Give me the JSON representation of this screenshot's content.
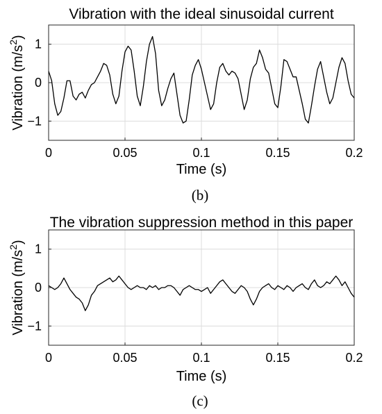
{
  "chart_data": [
    {
      "type": "line",
      "panel_label": "(b)",
      "title": "Vibration with the ideal sinusoidal current",
      "xlabel": "Time (s)",
      "ylabel_main": "Vibration (m/s",
      "ylabel_sup": "2",
      "ylabel_end": ")",
      "xlim": [
        0,
        0.2
      ],
      "ylim": [
        -1.5,
        1.5
      ],
      "xticks": [
        0,
        0.05,
        0.1,
        0.15,
        0.2
      ],
      "xtick_labels": [
        "0",
        "0.05",
        "0.1",
        "0.15",
        "0.2"
      ],
      "yticks": [
        -1,
        0,
        1
      ],
      "ytick_labels": [
        "−1",
        "0",
        "1"
      ],
      "grid": true,
      "color": "#000000",
      "series": [
        {
          "x": [
            0,
            0.002,
            0.004,
            0.006,
            0.008,
            0.01,
            0.012,
            0.014,
            0.016,
            0.018,
            0.02,
            0.022,
            0.024,
            0.026,
            0.028,
            0.03,
            0.032,
            0.034,
            0.036,
            0.038,
            0.04,
            0.042,
            0.044,
            0.046,
            0.048,
            0.05,
            0.052,
            0.054,
            0.056,
            0.058,
            0.06,
            0.062,
            0.064,
            0.066,
            0.068,
            0.07,
            0.072,
            0.074,
            0.076,
            0.078,
            0.08,
            0.082,
            0.084,
            0.086,
            0.088,
            0.09,
            0.092,
            0.094,
            0.096,
            0.098,
            0.1,
            0.102,
            0.104,
            0.106,
            0.108,
            0.11,
            0.112,
            0.114,
            0.116,
            0.118,
            0.12,
            0.122,
            0.124,
            0.126,
            0.128,
            0.13,
            0.132,
            0.134,
            0.136,
            0.138,
            0.14,
            0.142,
            0.144,
            0.146,
            0.148,
            0.15,
            0.152,
            0.154,
            0.156,
            0.158,
            0.16,
            0.162,
            0.164,
            0.166,
            0.168,
            0.17,
            0.172,
            0.174,
            0.176,
            0.178,
            0.18,
            0.182,
            0.184,
            0.186,
            0.188,
            0.19,
            0.192,
            0.194,
            0.196,
            0.198,
            0.2
          ],
          "y": [
            0.3,
            0.05,
            -0.55,
            -0.85,
            -0.75,
            -0.4,
            0.05,
            0.05,
            -0.35,
            -0.45,
            -0.3,
            -0.25,
            -0.4,
            -0.2,
            -0.05,
            0.0,
            0.15,
            0.3,
            0.5,
            0.45,
            0.2,
            -0.3,
            -0.55,
            -0.35,
            0.3,
            0.8,
            0.95,
            0.85,
            0.3,
            -0.35,
            -0.6,
            -0.1,
            0.55,
            1.0,
            1.2,
            0.75,
            -0.2,
            -0.6,
            -0.45,
            -0.15,
            0.1,
            0.25,
            -0.3,
            -0.85,
            -1.05,
            -1.0,
            -0.45,
            0.2,
            0.45,
            0.6,
            0.35,
            0.0,
            -0.35,
            -0.7,
            -0.55,
            0.0,
            0.4,
            0.5,
            0.3,
            0.2,
            0.3,
            0.25,
            0.1,
            -0.3,
            -0.7,
            -0.45,
            0.1,
            0.4,
            0.5,
            0.85,
            0.65,
            0.35,
            0.25,
            -0.15,
            -0.55,
            -0.65,
            -0.1,
            0.6,
            0.55,
            0.35,
            0.15,
            0.15,
            -0.2,
            -0.55,
            -0.95,
            -1.05,
            -0.6,
            -0.1,
            0.35,
            0.55,
            0.15,
            -0.25,
            -0.55,
            -0.4,
            0.0,
            0.4,
            0.65,
            0.5,
            0.05,
            -0.3,
            -0.4
          ]
        }
      ]
    },
    {
      "type": "line",
      "panel_label": "(c)",
      "title": "The vibration suppression method in this paper",
      "xlabel": "Time (s)",
      "ylabel_main": "Vibration (m/s",
      "ylabel_sup": "2",
      "ylabel_end": ")",
      "xlim": [
        0,
        0.2
      ],
      "ylim": [
        -1.5,
        1.5
      ],
      "xticks": [
        0,
        0.05,
        0.1,
        0.15,
        0.2
      ],
      "xtick_labels": [
        "0",
        "0.05",
        "0.1",
        "0.15",
        "0.2"
      ],
      "yticks": [
        -1,
        0,
        1
      ],
      "ytick_labels": [
        "−1",
        "0",
        "1"
      ],
      "grid": true,
      "color": "#000000",
      "series": [
        {
          "x": [
            0,
            0.002,
            0.004,
            0.006,
            0.008,
            0.01,
            0.012,
            0.014,
            0.016,
            0.018,
            0.02,
            0.022,
            0.024,
            0.026,
            0.028,
            0.03,
            0.032,
            0.034,
            0.036,
            0.038,
            0.04,
            0.042,
            0.044,
            0.046,
            0.048,
            0.05,
            0.052,
            0.054,
            0.056,
            0.058,
            0.06,
            0.062,
            0.064,
            0.066,
            0.068,
            0.07,
            0.072,
            0.074,
            0.076,
            0.078,
            0.08,
            0.082,
            0.084,
            0.086,
            0.088,
            0.09,
            0.092,
            0.094,
            0.096,
            0.098,
            0.1,
            0.102,
            0.104,
            0.106,
            0.108,
            0.11,
            0.112,
            0.114,
            0.116,
            0.118,
            0.12,
            0.122,
            0.124,
            0.126,
            0.128,
            0.13,
            0.132,
            0.134,
            0.136,
            0.138,
            0.14,
            0.142,
            0.144,
            0.146,
            0.148,
            0.15,
            0.152,
            0.154,
            0.156,
            0.158,
            0.16,
            0.162,
            0.164,
            0.166,
            0.168,
            0.17,
            0.172,
            0.174,
            0.176,
            0.178,
            0.18,
            0.182,
            0.184,
            0.186,
            0.188,
            0.19,
            0.192,
            0.194,
            0.196,
            0.198,
            0.2
          ],
          "y": [
            0.05,
            0.0,
            -0.05,
            0.0,
            0.1,
            0.25,
            0.1,
            -0.05,
            -0.15,
            -0.25,
            -0.3,
            -0.4,
            -0.6,
            -0.45,
            -0.2,
            -0.1,
            0.05,
            0.1,
            0.15,
            0.2,
            0.25,
            0.15,
            0.2,
            0.3,
            0.2,
            0.1,
            0.0,
            -0.05,
            0.0,
            0.05,
            0.0,
            0.0,
            -0.05,
            0.05,
            0.0,
            0.05,
            -0.05,
            0.0,
            0.0,
            0.05,
            0.05,
            0.0,
            -0.1,
            -0.2,
            -0.05,
            0.0,
            0.05,
            0.0,
            -0.05,
            -0.05,
            -0.1,
            -0.05,
            0.0,
            -0.15,
            -0.05,
            0.05,
            0.15,
            0.2,
            0.1,
            0.0,
            -0.1,
            -0.15,
            -0.05,
            0.05,
            0.0,
            -0.1,
            -0.3,
            -0.45,
            -0.3,
            -0.1,
            0.0,
            0.05,
            0.1,
            0.0,
            -0.05,
            0.05,
            0.0,
            -0.05,
            0.05,
            0.0,
            -0.1,
            0.0,
            0.05,
            0.1,
            0.0,
            -0.05,
            0.1,
            0.2,
            0.05,
            0.0,
            0.05,
            0.15,
            0.1,
            0.2,
            0.3,
            0.2,
            0.05,
            0.15,
            0.0,
            -0.15,
            -0.25
          ]
        }
      ]
    }
  ]
}
